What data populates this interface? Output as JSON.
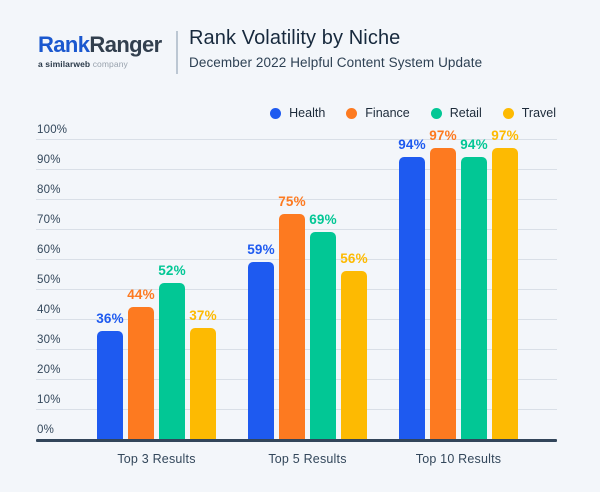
{
  "header": {
    "logo": {
      "brand_blue": "Rank",
      "brand_dark": "Ranger",
      "tagline_bold": "a similarweb",
      "tagline_light": " company"
    },
    "title": "Rank Volatility by Niche",
    "subtitle": "December 2022 Helpful Content System Update"
  },
  "colors": {
    "background": "#f3f6fa",
    "gridline": "#d9dfe7",
    "axis": "#32455a",
    "axis_text": "#33475b",
    "title_text": "#17293d",
    "logo_blue": "#1b58cf",
    "logo_dark": "#323f4e"
  },
  "chart_data": {
    "type": "bar",
    "title": "Rank Volatility by Niche",
    "subtitle": "December 2022 Helpful Content System Update",
    "categories": [
      "Top 3 Results",
      "Top 5 Results",
      "Top 10 Results"
    ],
    "series": [
      {
        "name": "Health",
        "color": "#1e5af0",
        "values": [
          36,
          59,
          94
        ]
      },
      {
        "name": "Finance",
        "color": "#fd7a20",
        "values": [
          44,
          75,
          97
        ]
      },
      {
        "name": "Retail",
        "color": "#02c795",
        "values": [
          52,
          69,
          94
        ]
      },
      {
        "name": "Travel",
        "color": "#fdba02",
        "values": [
          37,
          56,
          97
        ]
      }
    ],
    "xlabel": "",
    "ylabel": "",
    "ylim": [
      0,
      100
    ],
    "yticks": [
      0,
      10,
      20,
      30,
      40,
      50,
      60,
      70,
      80,
      90,
      100
    ],
    "ytick_suffix": "%",
    "value_suffix": "%",
    "grid": true,
    "legend_position": "top-right"
  }
}
